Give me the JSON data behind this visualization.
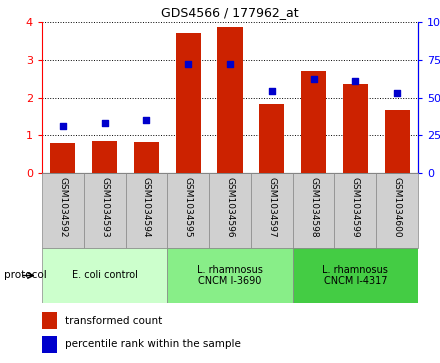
{
  "title": "GDS4566 / 177962_at",
  "categories": [
    "GSM1034592",
    "GSM1034593",
    "GSM1034594",
    "GSM1034595",
    "GSM1034596",
    "GSM1034597",
    "GSM1034598",
    "GSM1034599",
    "GSM1034600"
  ],
  "bar_values": [
    0.8,
    0.85,
    0.83,
    3.72,
    3.88,
    1.82,
    2.7,
    2.35,
    1.68
  ],
  "dot_values_pct": [
    31,
    33,
    35,
    72,
    72,
    54,
    62,
    61,
    53
  ],
  "bar_color": "#cc2200",
  "dot_color": "#0000cc",
  "ylim_left": [
    0,
    4
  ],
  "ylim_right": [
    0,
    100
  ],
  "yticks_left": [
    0,
    1,
    2,
    3,
    4
  ],
  "yticks_right": [
    0,
    25,
    50,
    75,
    100
  ],
  "ytick_labels_right": [
    "0",
    "25",
    "50",
    "75",
    "100%"
  ],
  "ytick_labels_left": [
    "0",
    "1",
    "2",
    "3",
    "4"
  ],
  "protocol_groups": [
    {
      "label": "E. coli control",
      "color": "#ccffcc",
      "start": 0,
      "end": 3
    },
    {
      "label": "L. rhamnosus\nCNCM I-3690",
      "color": "#88ee88",
      "start": 3,
      "end": 6
    },
    {
      "label": "L. rhamnosus\nCNCM I-4317",
      "color": "#44cc44",
      "start": 6,
      "end": 9
    }
  ],
  "legend_bar_label": "transformed count",
  "legend_dot_label": "percentile rank within the sample",
  "protocol_label": "protocol",
  "bg_color": "#ffffff",
  "tick_bg_color": "#d0d0d0",
  "border_color": "#888888"
}
